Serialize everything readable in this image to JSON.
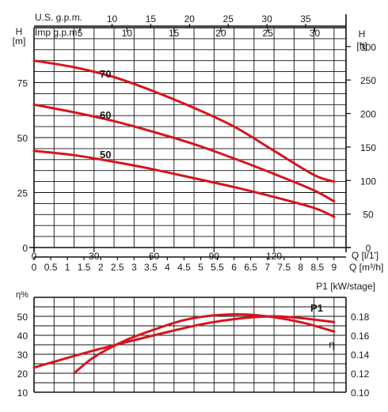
{
  "chart_data": [
    {
      "type": "line",
      "title": "",
      "x_axis_bottom": {
        "label": "Q [l/1']",
        "ticks": [
          "0",
          "30",
          "60",
          "90",
          "120"
        ],
        "range": [
          0,
          156
        ]
      },
      "x_axis_bottom2": {
        "label": "Q [m³/h]",
        "ticks": [
          "0",
          "0.5",
          "1",
          "1.5",
          "2",
          "2.5",
          "3",
          "3.5",
          "4",
          "4.5",
          "5",
          "5.5",
          "6",
          "6.5",
          "7",
          "7.5",
          "8",
          "8.5",
          "9"
        ]
      },
      "x_axis_top1": {
        "label": "U.S. g.p.m.",
        "ticks": [
          "10",
          "15",
          "20",
          "25",
          "30",
          "35"
        ]
      },
      "x_axis_top2": {
        "label": "Imp g.p.m.",
        "ticks": [
          "5",
          "10",
          "15",
          "20",
          "25",
          "30"
        ]
      },
      "y_axis_left": {
        "label_top": "H",
        "label_unit": "[m]",
        "ticks": [
          "0",
          "25",
          "50",
          "75"
        ],
        "range": [
          0,
          100
        ]
      },
      "y_axis_right": {
        "label_top": "H",
        "label_unit": "[ft]",
        "ticks": [
          "0",
          "50",
          "100",
          "150",
          "200",
          "250",
          "300"
        ]
      },
      "grid": true,
      "series": [
        {
          "name": "70",
          "x": [
            0,
            20,
            40,
            60,
            80,
            100,
            120,
            140,
            150
          ],
          "y": [
            85,
            82,
            77.5,
            71,
            63.5,
            55,
            44,
            33,
            30
          ]
        },
        {
          "name": "60",
          "x": [
            0,
            20,
            40,
            60,
            80,
            100,
            120,
            140,
            150
          ],
          "y": [
            65,
            61.5,
            57.5,
            52.5,
            47,
            40.5,
            33.5,
            26,
            21
          ]
        },
        {
          "name": "50",
          "x": [
            0,
            20,
            40,
            60,
            80,
            100,
            120,
            140,
            150
          ],
          "y": [
            44,
            42,
            39,
            35.5,
            31.5,
            27.5,
            23,
            18,
            14
          ]
        }
      ]
    },
    {
      "type": "line",
      "title": "",
      "y_axis_left": {
        "label": "η%",
        "ticks": [
          "10",
          "20",
          "30",
          "40",
          "50"
        ],
        "range": [
          10,
          60
        ]
      },
      "y_axis_right": {
        "label": "P1 [kW/stage]",
        "ticks": [
          "0.10",
          "0.12",
          "0.14",
          "0.16",
          "0.18"
        ],
        "range": [
          0.1,
          0.2
        ]
      },
      "grid": true,
      "series": [
        {
          "name": "P1",
          "axis": "right",
          "x": [
            0,
            30,
            60,
            90,
            120,
            150
          ],
          "y": [
            0.126,
            0.144,
            0.16,
            0.174,
            0.18,
            0.174
          ]
        },
        {
          "name": "η",
          "axis": "left",
          "x": [
            20,
            30,
            45,
            60,
            75,
            90,
            105,
            120,
            135,
            150
          ],
          "y": [
            20,
            28.5,
            37,
            43,
            48,
            50.5,
            51,
            49.5,
            46.5,
            42
          ]
        }
      ]
    }
  ]
}
